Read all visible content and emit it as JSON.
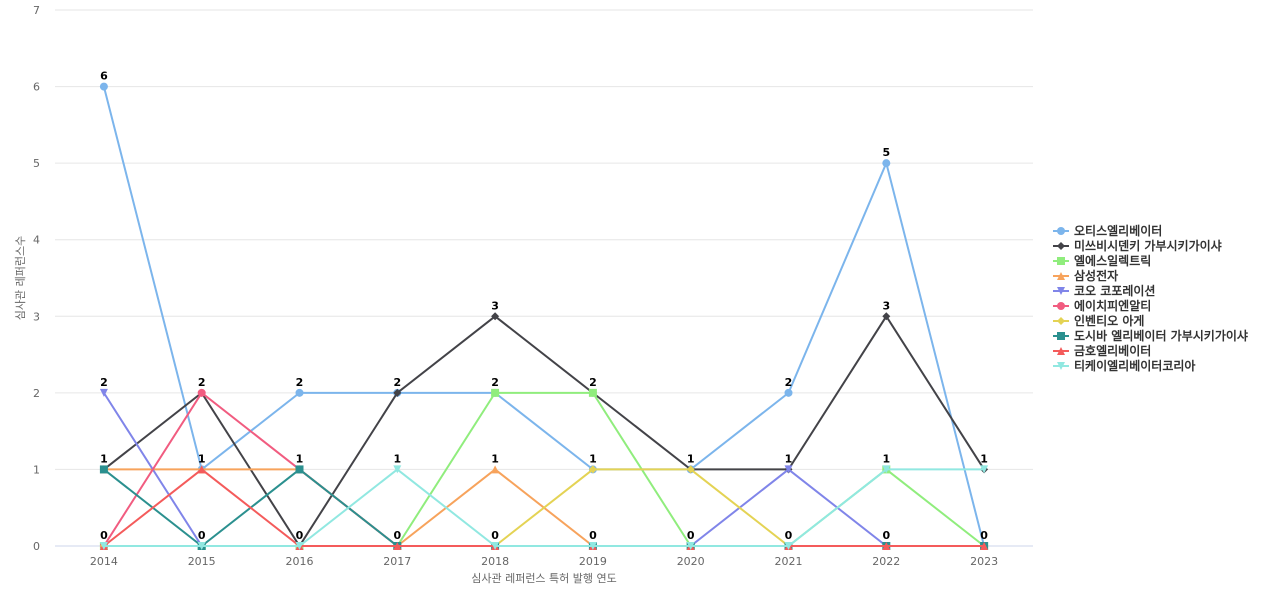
{
  "chart_data": {
    "type": "line",
    "x_label": "심사관 레퍼런스 특허 발행 연도",
    "y_label": "심사관 레퍼런스수",
    "categories": [
      "2014",
      "2015",
      "2016",
      "2017",
      "2018",
      "2019",
      "2020",
      "2021",
      "2022",
      "2023"
    ],
    "ylim": [
      0,
      7
    ],
    "yticks": [
      0,
      1,
      2,
      3,
      4,
      5,
      6,
      7
    ],
    "grid": true,
    "legend": "right",
    "series": [
      {
        "name": "오티스엘리베이터",
        "color": "#7cb5ec",
        "marker": "circle",
        "values": [
          6,
          1,
          2,
          2,
          2,
          1,
          1,
          2,
          5,
          0
        ]
      },
      {
        "name": "미쓰비시덴키 가부시키가이샤",
        "color": "#434348",
        "marker": "diamond",
        "values": [
          1,
          2,
          0,
          2,
          3,
          2,
          1,
          1,
          3,
          1
        ]
      },
      {
        "name": "엘에스일렉트릭",
        "color": "#90ed7d",
        "marker": "square",
        "values": [
          0,
          0,
          0,
          0,
          2,
          2,
          0,
          0,
          1,
          0
        ]
      },
      {
        "name": "삼성전자",
        "color": "#f7a35c",
        "marker": "triangle",
        "values": [
          1,
          1,
          1,
          0,
          1,
          0,
          0,
          0,
          0,
          0
        ]
      },
      {
        "name": "코오 코포레이션",
        "color": "#8085e9",
        "marker": "triangle-down",
        "values": [
          2,
          0,
          0,
          0,
          0,
          0,
          0,
          1,
          0,
          0
        ]
      },
      {
        "name": "에이치피엔알티",
        "color": "#f15c80",
        "marker": "circle",
        "values": [
          0,
          2,
          1,
          0,
          0,
          0,
          0,
          0,
          0,
          0
        ]
      },
      {
        "name": "인벤티오 아게",
        "color": "#e4d354",
        "marker": "diamond",
        "values": [
          0,
          0,
          0,
          0,
          0,
          1,
          1,
          0,
          0,
          0
        ]
      },
      {
        "name": "도시바 엘리베이터 가부시키가이샤",
        "color": "#2b908f",
        "marker": "square",
        "values": [
          1,
          0,
          1,
          0,
          0,
          0,
          0,
          0,
          0,
          0
        ]
      },
      {
        "name": "금호엘리베이터",
        "color": "#f45b5b",
        "marker": "triangle",
        "values": [
          0,
          1,
          0,
          0,
          0,
          0,
          0,
          0,
          0,
          0
        ]
      },
      {
        "name": "티케이엘리베이터코리아",
        "color": "#91e8e1",
        "marker": "triangle-down",
        "values": [
          0,
          0,
          0,
          1,
          0,
          0,
          0,
          0,
          1,
          1
        ]
      }
    ]
  }
}
